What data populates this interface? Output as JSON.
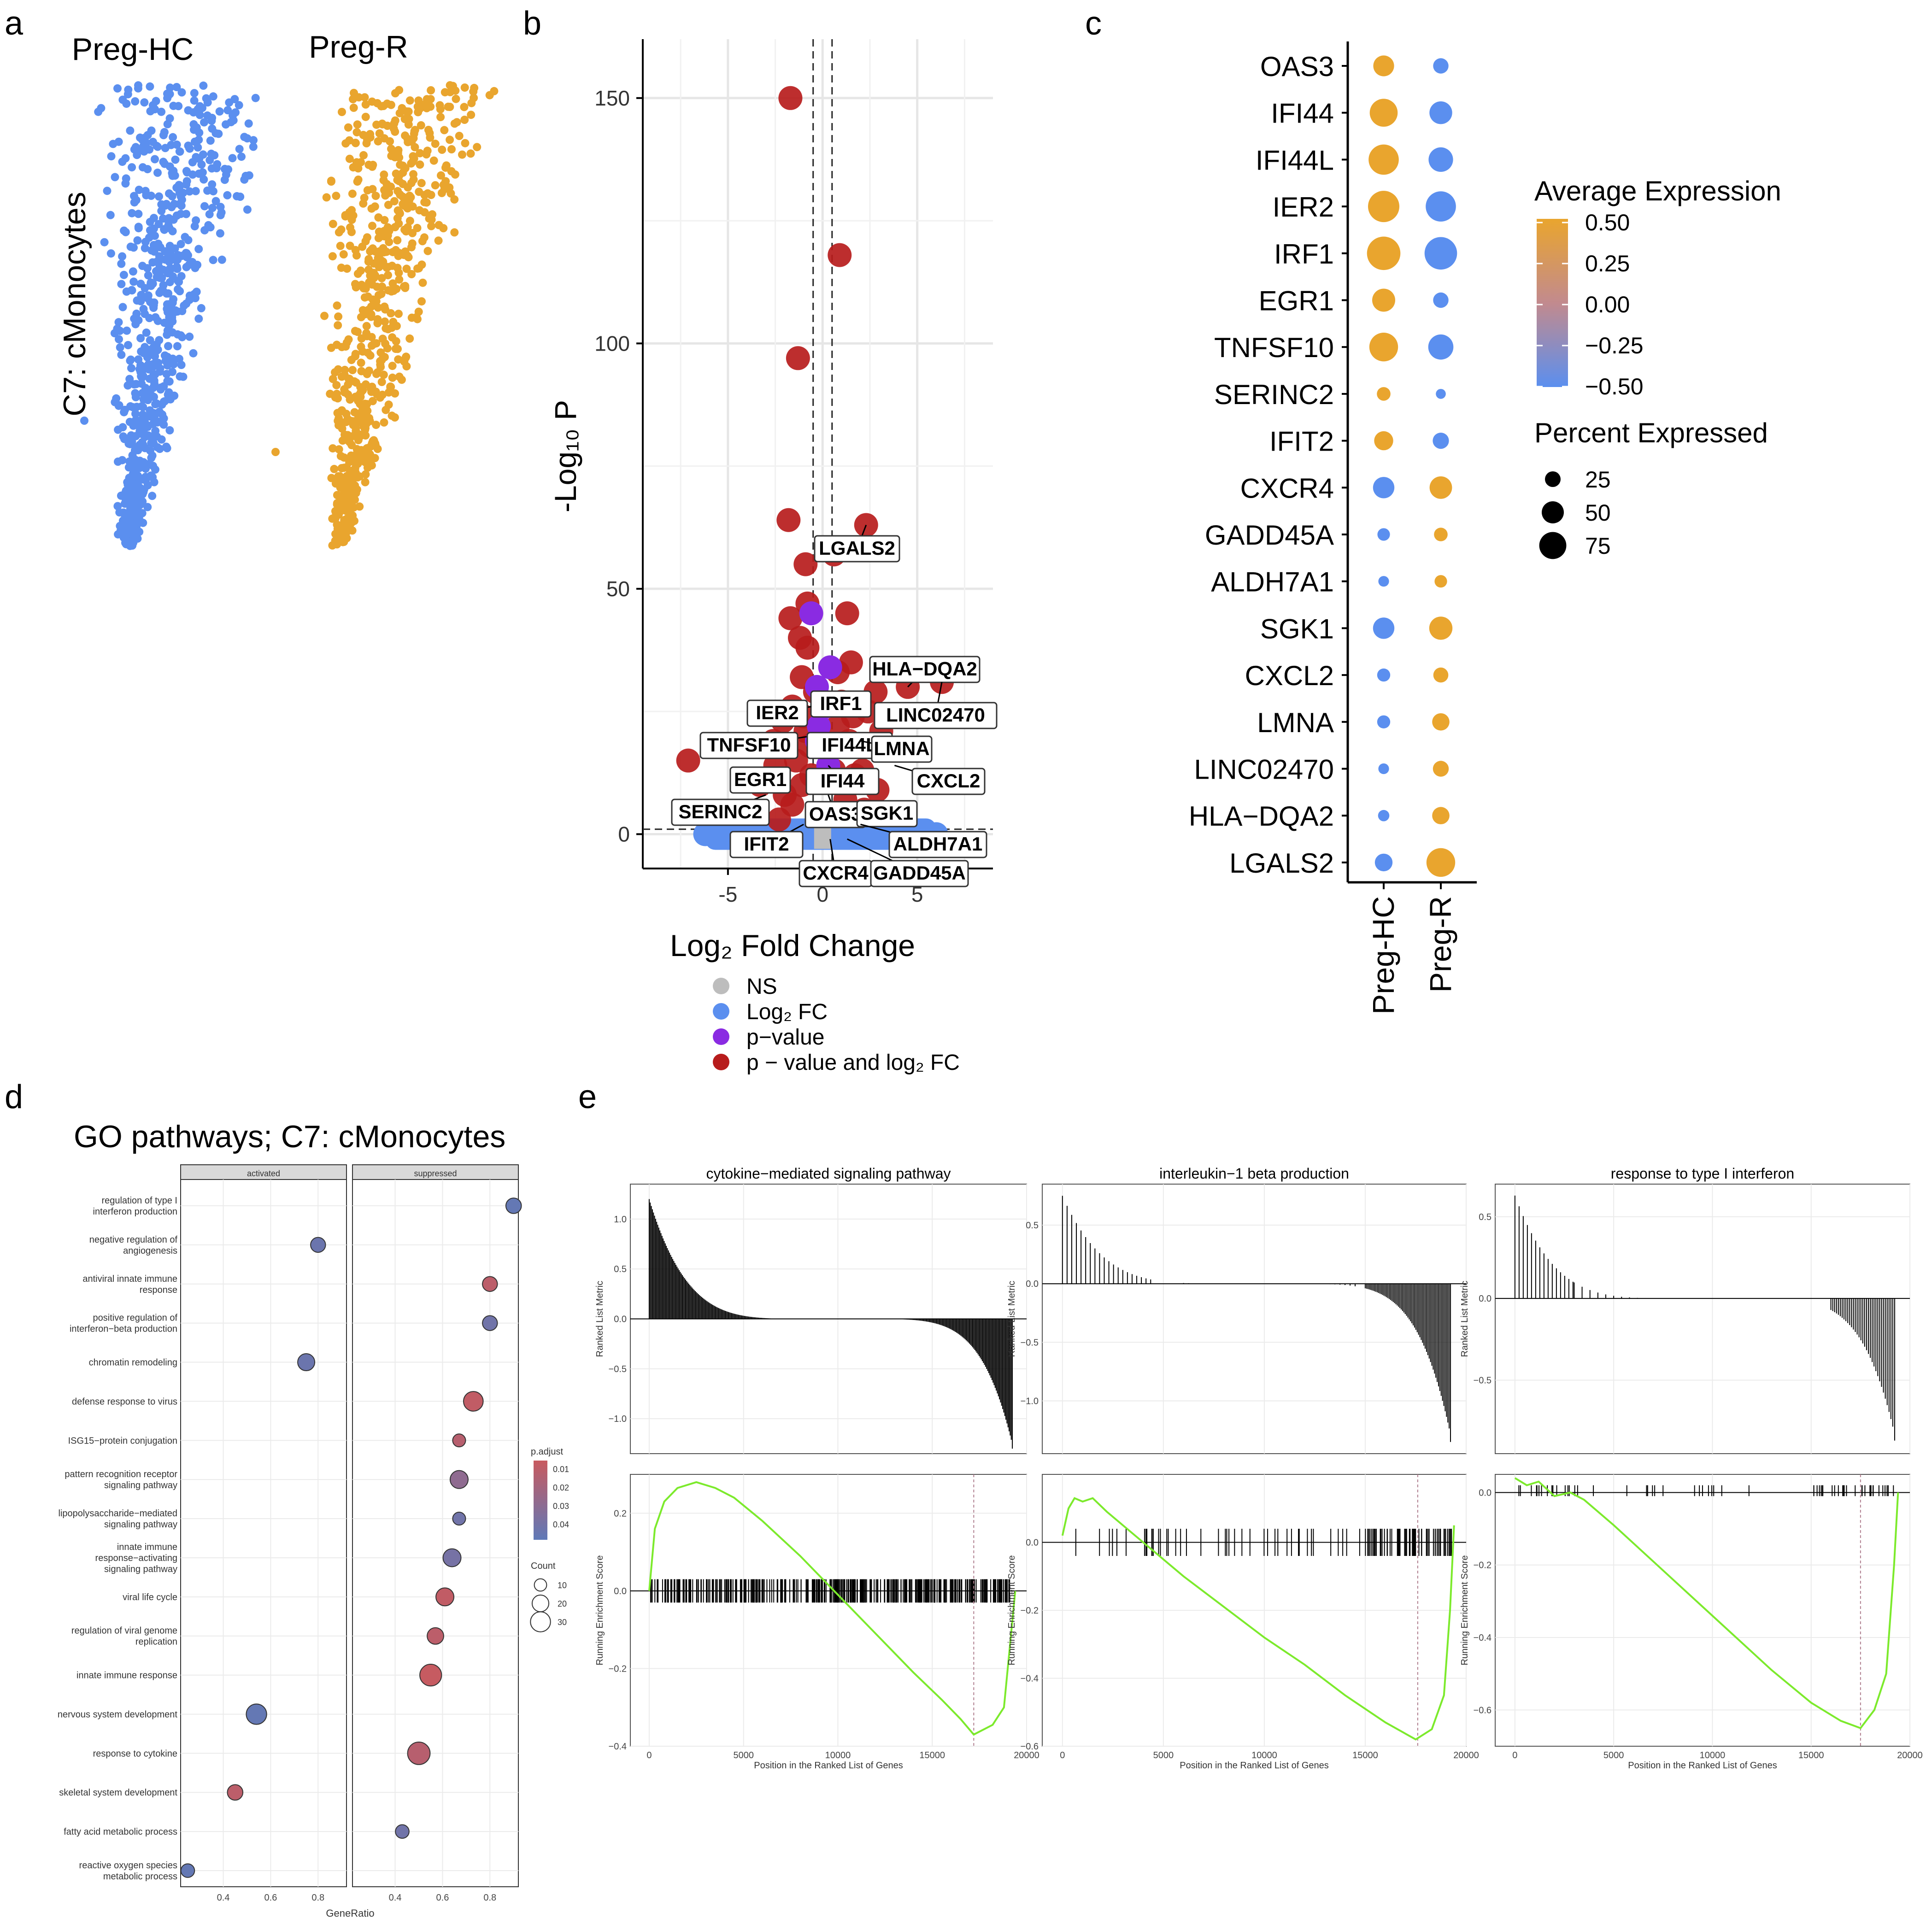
{
  "panel_letters": [
    "a",
    "b",
    "c",
    "d",
    "e"
  ],
  "chart_data": [
    {
      "panel": "a",
      "type": "scatter",
      "description_labels": {
        "row_label": "C7: cMonocytes",
        "groups": [
          {
            "name": "Preg-HC",
            "color": "#5b8fef"
          },
          {
            "name": "Preg-R",
            "color": "#e9a52e"
          }
        ]
      }
    },
    {
      "panel": "b",
      "type": "scatter",
      "xlabel": "Log₂ Fold Change",
      "ylabel": "-Log₁₀ P",
      "xlim": [
        -9.5,
        9.0
      ],
      "ylim": [
        -7,
        162
      ],
      "xticks": [
        -5,
        0,
        5
      ],
      "yticks": [
        0,
        50,
        100,
        150
      ],
      "thresholds": {
        "fc": [
          -0.5,
          0.5
        ],
        "p_line": 1
      },
      "legend": [
        {
          "label": "NS",
          "color": "#bdbdbd"
        },
        {
          "label": "Log₂ FC",
          "color": "#5b8fef"
        },
        {
          "label": "p−value",
          "color": "#8a2be2"
        },
        {
          "label": "p − value and log₂ FC",
          "color": "#b71c1c"
        }
      ],
      "points_red": [
        [
          -1.7,
          150
        ],
        [
          0.9,
          118
        ],
        [
          -1.3,
          97
        ],
        [
          -1.8,
          64
        ],
        [
          2.3,
          63
        ],
        [
          0.6,
          57
        ],
        [
          -0.9,
          55
        ],
        [
          -0.8,
          47
        ],
        [
          1.3,
          45
        ],
        [
          -1.7,
          44
        ],
        [
          -1.2,
          40
        ],
        [
          -0.8,
          38
        ],
        [
          1.5,
          35
        ],
        [
          -1.1,
          32
        ],
        [
          0.8,
          33
        ],
        [
          4.5,
          30
        ],
        [
          6.3,
          31
        ],
        [
          -0.4,
          29
        ],
        [
          2.8,
          29
        ],
        [
          1.0,
          27
        ],
        [
          -1.6,
          26
        ],
        [
          2.4,
          25
        ],
        [
          -1.0,
          24
        ],
        [
          1.6,
          24
        ],
        [
          -2.1,
          23
        ],
        [
          0.8,
          22
        ],
        [
          -0.9,
          21
        ],
        [
          3.1,
          21
        ],
        [
          -2.6,
          19
        ],
        [
          1.4,
          19
        ],
        [
          -0.7,
          18
        ],
        [
          -7.1,
          15
        ],
        [
          -1.4,
          15
        ],
        [
          -2.5,
          14
        ],
        [
          2.1,
          13
        ],
        [
          1.7,
          12
        ],
        [
          -3.3,
          10
        ],
        [
          -1.1,
          10
        ],
        [
          2.9,
          9
        ],
        [
          -2.0,
          8
        ],
        [
          1.2,
          7
        ],
        [
          -1.6,
          6
        ],
        [
          2.2,
          5
        ],
        [
          3.6,
          4
        ],
        [
          -2.3,
          3
        ],
        [
          0.6,
          13
        ],
        [
          -0.6,
          12
        ]
      ],
      "points_purple": [
        [
          -0.6,
          45
        ],
        [
          0.4,
          34
        ],
        [
          -0.3,
          30
        ],
        [
          0.2,
          26
        ],
        [
          -0.3,
          19
        ],
        [
          0.3,
          14
        ],
        [
          -0.2,
          22
        ]
      ],
      "points_blue": [
        [
          -6.2,
          0
        ],
        [
          -4.5,
          0
        ],
        [
          -3,
          0
        ],
        [
          -1.5,
          0
        ],
        [
          1.5,
          0
        ],
        [
          3,
          0
        ],
        [
          4.5,
          0
        ],
        [
          6,
          0
        ],
        [
          -0.3,
          0.5
        ],
        [
          0.3,
          0.5
        ]
      ],
      "labels": [
        {
          "text": "LGALS2",
          "x": 2.3,
          "y": 63
        },
        {
          "text": "HLA−DQA2",
          "x": 4.5,
          "y": 30
        },
        {
          "text": "IRF1",
          "x": 0.4,
          "y": 27
        },
        {
          "text": "IER2",
          "x": -0.6,
          "y": 26
        },
        {
          "text": "LINC02470",
          "x": 6.3,
          "y": 31
        },
        {
          "text": "TNFSF10",
          "x": -0.6,
          "y": 20
        },
        {
          "text": "IFI44L",
          "x": 0.3,
          "y": 20
        },
        {
          "text": "LMNA",
          "x": 2.0,
          "y": 19
        },
        {
          "text": "EGR1",
          "x": -2.0,
          "y": 13
        },
        {
          "text": "IFI44",
          "x": 0.3,
          "y": 14
        },
        {
          "text": "CXCL2",
          "x": 3.8,
          "y": 14
        },
        {
          "text": "SERINC2",
          "x": -3.0,
          "y": 8
        },
        {
          "text": "OAS3",
          "x": 0.3,
          "y": 8
        },
        {
          "text": "SGK1",
          "x": 1.8,
          "y": 5
        },
        {
          "text": "IFIT2",
          "x": -1.0,
          "y": 2
        },
        {
          "text": "ALDH7A1",
          "x": 2.0,
          "y": 2
        },
        {
          "text": "CXCR4",
          "x": 0.4,
          "y": -1
        },
        {
          "text": "GADD45A",
          "x": 1.3,
          "y": -1
        }
      ]
    },
    {
      "panel": "c",
      "type": "scatter",
      "genes": [
        "OAS3",
        "IFI44",
        "IFI44L",
        "IER2",
        "IRF1",
        "EGR1",
        "TNFSF10",
        "SERINC2",
        "IFIT2",
        "CXCR4",
        "GADD45A",
        "ALDH7A1",
        "SGK1",
        "CXCL2",
        "LMNA",
        "LINC02470",
        "HLA−DQA2",
        "LGALS2"
      ],
      "groups": [
        "Preg-HC",
        "Preg-R"
      ],
      "average_expression": {
        "Preg-HC": [
          0.5,
          0.5,
          0.5,
          0.5,
          0.5,
          0.5,
          0.5,
          0.5,
          0.5,
          -0.5,
          -0.5,
          -0.5,
          -0.5,
          -0.5,
          -0.5,
          -0.5,
          -0.5,
          -0.5
        ],
        "Preg-R": [
          -0.5,
          -0.5,
          -0.5,
          -0.5,
          -0.5,
          -0.5,
          -0.5,
          -0.5,
          -0.5,
          0.5,
          0.5,
          0.5,
          0.5,
          0.5,
          0.5,
          0.5,
          0.5,
          0.5
        ]
      },
      "percent_expressed": {
        "Preg-HC": [
          30,
          60,
          72,
          78,
          90,
          38,
          64,
          10,
          24,
          32,
          8,
          5,
          32,
          9,
          9,
          5,
          6,
          20
        ],
        "Preg-R": [
          14,
          37,
          44,
          72,
          85,
          14,
          47,
          4,
          16,
          36,
          10,
          8,
          39,
          13,
          19,
          15,
          19,
          64
        ]
      },
      "legend_color_title": "Average Expression",
      "legend_color_ticks": [
        "0.50",
        "0.25",
        "0.00",
        "−0.25",
        "−0.50"
      ],
      "legend_size_title": "Percent Expressed",
      "legend_size_ticks": [
        "25",
        "50",
        "75"
      ]
    },
    {
      "panel": "d",
      "type": "scatter",
      "title": "GO pathways; C7: cMonocytes",
      "xlabel": "GeneRatio",
      "facets": [
        "activated",
        "suppressed"
      ],
      "facet_xlim": [
        [
          0.22,
          0.92
        ],
        [
          0.22,
          0.92
        ]
      ],
      "xticks": [
        "0.4",
        "0.6",
        "0.8"
      ],
      "xtick_values": [
        0.4,
        0.6,
        0.8
      ],
      "terms": [
        "regulation of type I\ninterferon production",
        "negative regulation of\nangiogenesis",
        "antiviral innate immune\nresponse",
        "positive regulation of\ninterferon−beta production",
        "chromatin remodeling",
        "defense response to virus",
        "ISG15−protein conjugation",
        "pattern recognition receptor\nsignaling pathway",
        "lipopolysaccharide−mediated\nsignaling pathway",
        "innate immune\nresponse−activating\nsignaling pathway",
        "viral life cycle",
        "regulation of viral genome\nreplication",
        "innate immune response",
        "nervous system development",
        "response to cytokine",
        "skeletal system development",
        "fatty acid metabolic process",
        "reactive oxygen species\nmetabolic process"
      ],
      "points": [
        {
          "facet": "suppressed",
          "ratio": 0.9,
          "count": 9,
          "padj": 0.045
        },
        {
          "facet": "activated",
          "ratio": 0.8,
          "count": 8,
          "padj": 0.042
        },
        {
          "facet": "suppressed",
          "ratio": 0.8,
          "count": 8,
          "padj": 0.01
        },
        {
          "facet": "suppressed",
          "ratio": 0.8,
          "count": 8,
          "padj": 0.04
        },
        {
          "facet": "activated",
          "ratio": 0.75,
          "count": 12,
          "padj": 0.042
        },
        {
          "facet": "suppressed",
          "ratio": 0.73,
          "count": 18,
          "padj": 0.008
        },
        {
          "facet": "suppressed",
          "ratio": 0.67,
          "count": 5,
          "padj": 0.012
        },
        {
          "facet": "suppressed",
          "ratio": 0.67,
          "count": 14,
          "padj": 0.028
        },
        {
          "facet": "suppressed",
          "ratio": 0.67,
          "count": 5,
          "padj": 0.04
        },
        {
          "facet": "suppressed",
          "ratio": 0.64,
          "count": 14,
          "padj": 0.038
        },
        {
          "facet": "suppressed",
          "ratio": 0.61,
          "count": 14,
          "padj": 0.008
        },
        {
          "facet": "suppressed",
          "ratio": 0.57,
          "count": 11,
          "padj": 0.01
        },
        {
          "facet": "suppressed",
          "ratio": 0.55,
          "count": 24,
          "padj": 0.006
        },
        {
          "facet": "activated",
          "ratio": 0.54,
          "count": 20,
          "padj": 0.045
        },
        {
          "facet": "suppressed",
          "ratio": 0.5,
          "count": 26,
          "padj": 0.012
        },
        {
          "facet": "activated",
          "ratio": 0.45,
          "count": 9,
          "padj": 0.01
        },
        {
          "facet": "suppressed",
          "ratio": 0.43,
          "count": 6,
          "padj": 0.04
        },
        {
          "facet": "activated",
          "ratio": 0.25,
          "count": 6,
          "padj": 0.045
        }
      ],
      "legend_padj_title": "p.adjust",
      "legend_padj_ticks": [
        "0.01",
        "0.02",
        "0.03",
        "0.04"
      ],
      "legend_count_title": "Count",
      "legend_count_ticks": [
        "10",
        "20",
        "30"
      ]
    },
    {
      "panel": "e",
      "type": "line",
      "xlabel": "Position in the Ranked List of Genes",
      "top_ylabel": "Ranked List Metric",
      "bottom_ylabel": "Running Enrichment Score",
      "xlim": [
        -1000,
        20000
      ],
      "xticks": [
        "0",
        "5000",
        "10000",
        "15000",
        "20000"
      ],
      "plots": [
        {
          "title": "cytokine−mediated signaling pathway",
          "metric_ylim": [
            -1.35,
            1.35
          ],
          "metric_ticks": [
            "1.0",
            "0.5",
            "0.0",
            "−0.5",
            "−1.0"
          ],
          "metric_tick_values": [
            1.0,
            0.5,
            0.0,
            -0.5,
            -1.0
          ],
          "metric_max": 1.2,
          "metric_min": -1.3,
          "es_ylim": [
            -0.4,
            0.3
          ],
          "es_ticks": [
            "0.2",
            "0.0",
            "−0.2",
            "−0.4"
          ],
          "es_tick_values": [
            0.2,
            0.0,
            -0.2,
            -0.4
          ],
          "es_curve": [
            [
              0,
              0
            ],
            [
              300,
              0.16
            ],
            [
              800,
              0.23
            ],
            [
              1500,
              0.265
            ],
            [
              2500,
              0.28
            ],
            [
              3500,
              0.265
            ],
            [
              4500,
              0.24
            ],
            [
              6000,
              0.18
            ],
            [
              8000,
              0.09
            ],
            [
              10000,
              -0.01
            ],
            [
              12000,
              -0.11
            ],
            [
              14000,
              -0.21
            ],
            [
              15500,
              -0.28
            ],
            [
              16500,
              -0.33
            ],
            [
              17200,
              -0.37
            ],
            [
              18200,
              -0.345
            ],
            [
              18800,
              -0.3
            ],
            [
              19200,
              -0.1
            ],
            [
              19400,
              0
            ]
          ],
          "dashed_x": 17200,
          "hit_band": [
            -0.03,
            0.03
          ],
          "hit_density": "dense"
        },
        {
          "title": "interleukin−1 beta production",
          "metric_ylim": [
            -1.45,
            0.85
          ],
          "metric_ticks": [
            "0.5",
            "0.0",
            "−0.5",
            "−1.0"
          ],
          "metric_tick_values": [
            0.5,
            0.0,
            -0.5,
            -1.0
          ],
          "metric_max": 0.75,
          "metric_min": -1.35,
          "es_ylim": [
            -0.6,
            0.2
          ],
          "es_ticks": [
            "0.0",
            "−0.2",
            "−0.4",
            "−0.6"
          ],
          "es_tick_values": [
            0.0,
            -0.2,
            -0.4,
            -0.6
          ],
          "es_curve": [
            [
              0,
              0.02
            ],
            [
              300,
              0.1
            ],
            [
              600,
              0.13
            ],
            [
              1000,
              0.12
            ],
            [
              1500,
              0.13
            ],
            [
              2200,
              0.09
            ],
            [
              3000,
              0.05
            ],
            [
              4000,
              0.0
            ],
            [
              6000,
              -0.1
            ],
            [
              8000,
              -0.19
            ],
            [
              10000,
              -0.28
            ],
            [
              12000,
              -0.36
            ],
            [
              14000,
              -0.45
            ],
            [
              16000,
              -0.53
            ],
            [
              17500,
              -0.58
            ],
            [
              18300,
              -0.55
            ],
            [
              18900,
              -0.45
            ],
            [
              19200,
              -0.2
            ],
            [
              19400,
              0.05
            ]
          ],
          "dashed_x": 17600,
          "hit_band": [
            -0.04,
            0.04
          ],
          "hit_density": "medium"
        },
        {
          "title": "response to type I interferon",
          "metric_ylim": [
            -0.95,
            0.7
          ],
          "metric_ticks": [
            "0.5",
            "0.0",
            "−0.5"
          ],
          "metric_tick_values": [
            0.5,
            0.0,
            -0.5
          ],
          "metric_max": 0.63,
          "metric_min": -0.87,
          "es_ylim": [
            -0.7,
            0.05
          ],
          "es_ticks": [
            "0.0",
            "−0.2",
            "−0.4",
            "−0.6"
          ],
          "es_tick_values": [
            0.0,
            -0.2,
            -0.4,
            -0.6
          ],
          "es_curve": [
            [
              0,
              0.04
            ],
            [
              600,
              0.02
            ],
            [
              1200,
              0.03
            ],
            [
              2000,
              -0.01
            ],
            [
              2800,
              0.0
            ],
            [
              3500,
              -0.02
            ],
            [
              5000,
              -0.09
            ],
            [
              7000,
              -0.19
            ],
            [
              9000,
              -0.29
            ],
            [
              11000,
              -0.39
            ],
            [
              13000,
              -0.49
            ],
            [
              15000,
              -0.58
            ],
            [
              16500,
              -0.63
            ],
            [
              17500,
              -0.65
            ],
            [
              18200,
              -0.6
            ],
            [
              18800,
              -0.5
            ],
            [
              19200,
              -0.2
            ],
            [
              19400,
              0.0
            ]
          ],
          "dashed_x": 17500,
          "hit_band": [
            -0.01,
            0.02
          ],
          "hit_density": "sparse"
        }
      ]
    }
  ]
}
